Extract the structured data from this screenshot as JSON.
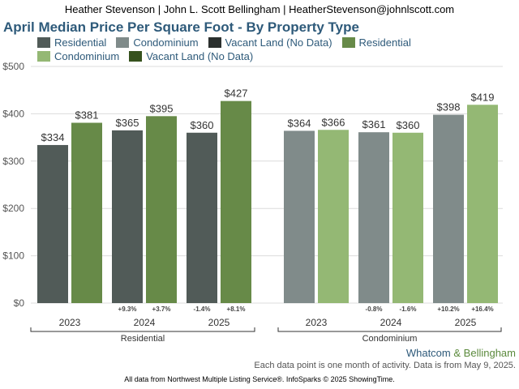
{
  "header": {
    "text": "Heather Stevenson | John L. Scott Bellingham | HeatherStevenson@johnlscott.com"
  },
  "chart_data": {
    "type": "bar",
    "title": "April Median Price Per Square Foot - By Property Type",
    "ylim": [
      0,
      500
    ],
    "yticks": [
      "$0",
      "$100",
      "$200",
      "$300",
      "$400",
      "$500"
    ],
    "ytick_values": [
      0,
      100,
      200,
      300,
      400,
      500
    ],
    "grid": true,
    "legend_position": "top-left",
    "legend": [
      {
        "label": "Residential",
        "color": "#515b58"
      },
      {
        "label": "Condominium",
        "color": "#808b8a"
      },
      {
        "label": "Vacant Land (No Data)",
        "color": "#2b302e"
      },
      {
        "label": "Residential",
        "color": "#678a48"
      },
      {
        "label": "Condominium",
        "color": "#94b874"
      },
      {
        "label": "Vacant Land (No Data)",
        "color": "#36521e"
      }
    ],
    "groups": [
      {
        "name": "Residential",
        "years": [
          {
            "year": "2023",
            "prev": 334,
            "curr": 381,
            "prev_label": "$334",
            "curr_label": "$381",
            "prev_change": "",
            "curr_change": ""
          },
          {
            "year": "2024",
            "prev": 365,
            "curr": 395,
            "prev_label": "$365",
            "curr_label": "$395",
            "prev_change": "+9.3%",
            "curr_change": "+3.7%"
          },
          {
            "year": "2025",
            "prev": 360,
            "curr": 427,
            "prev_label": "$360",
            "curr_label": "$427",
            "prev_change": "-1.4%",
            "curr_change": "+8.1%"
          }
        ],
        "prev_color": "#515b58",
        "curr_color": "#678a48"
      },
      {
        "name": "Condominium",
        "years": [
          {
            "year": "2023",
            "prev": 364,
            "curr": 366,
            "prev_label": "$364",
            "curr_label": "$366",
            "prev_change": "",
            "curr_change": ""
          },
          {
            "year": "2024",
            "prev": 361,
            "curr": 360,
            "prev_label": "$361",
            "curr_label": "$360",
            "prev_change": "-0.8%",
            "curr_change": "-1.6%"
          },
          {
            "year": "2025",
            "prev": 398,
            "curr": 419,
            "prev_label": "$398",
            "curr_label": "$419",
            "prev_change": "+10.2%",
            "curr_change": "+16.4%"
          }
        ],
        "prev_color": "#808b8a",
        "curr_color": "#94b874"
      }
    ]
  },
  "footer": {
    "region_part1": "Whatcom",
    "region_amp": "&",
    "region_part2": "Bellingham",
    "note": "Each data point is one month of activity. Data is from May 9, 2025.",
    "source": "All data from Northwest Multiple Listing Service®. InfoSparks © 2025 ShowingTime."
  }
}
